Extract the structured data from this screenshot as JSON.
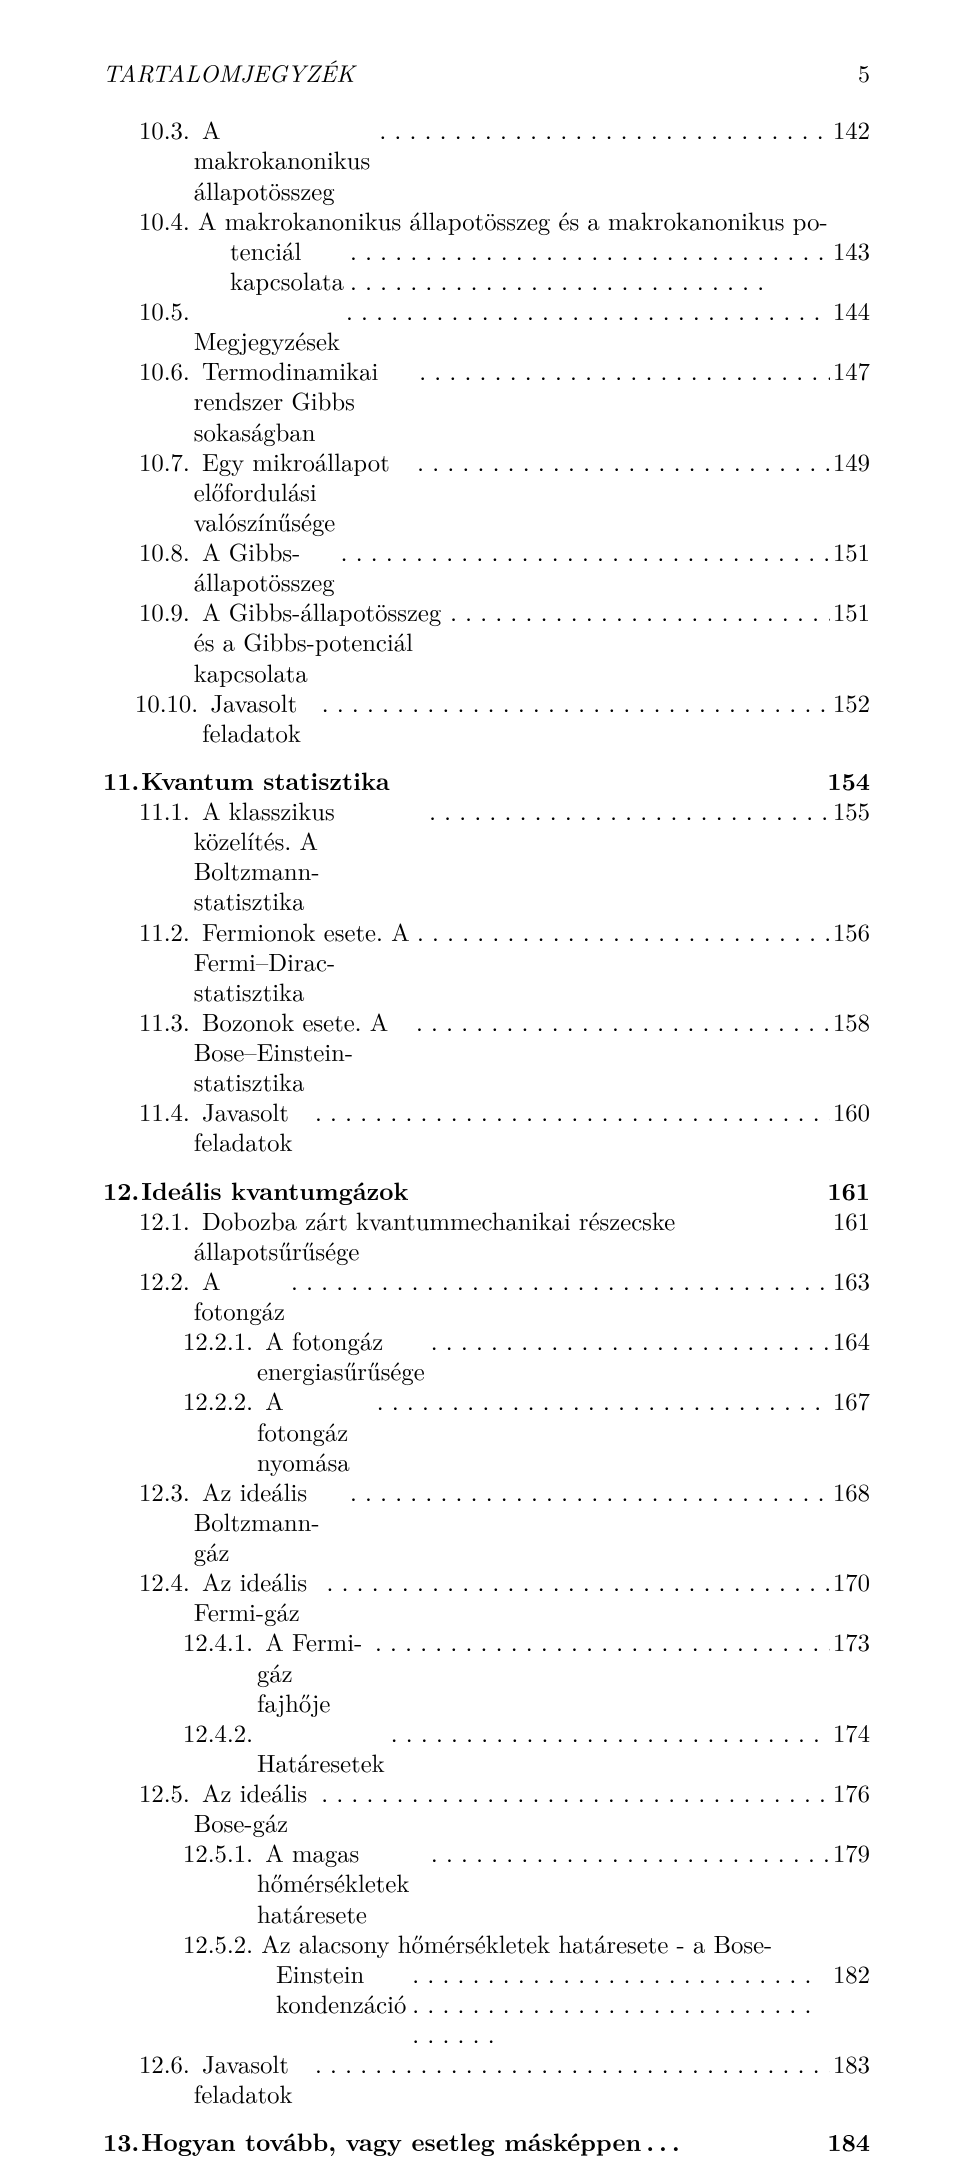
{
  "header": {
    "title": "TARTALOMJEGYZÉK",
    "page": "5"
  },
  "entries": [
    {
      "type": "sub",
      "indent": 1,
      "num": "10.3.",
      "text": "A makrokanonikus állapotösszeg",
      "page": "142"
    },
    {
      "type": "wrap",
      "indent": 1,
      "num": "10.4.",
      "text1": "A makrokanonikus állapotösszeg és a makrokanonikus po-",
      "text2": "tenciál kapcsolata",
      "page": "143"
    },
    {
      "type": "sub",
      "indent": 1,
      "num": "10.5.",
      "text": "Megjegyzések",
      "page": "144"
    },
    {
      "type": "sub",
      "indent": 1,
      "num": "10.6.",
      "text": "Termodinamikai rendszer Gibbs sokaságban",
      "page": "147"
    },
    {
      "type": "sub",
      "indent": 1,
      "num": "10.7.",
      "text": "Egy mikroállapot előfordulási valószínűsége",
      "page": "149"
    },
    {
      "type": "sub",
      "indent": 1,
      "num": "10.8.",
      "text": "A Gibbs-állapotösszeg",
      "page": "151"
    },
    {
      "type": "sub",
      "indent": 1,
      "num": "10.9.",
      "text": "A Gibbs-állapotösszeg és a Gibbs-potenciál kapcsolata",
      "page": "151"
    },
    {
      "type": "sub",
      "indent": 1,
      "num": "10.10.",
      "text": "Javasolt feladatok",
      "page": "152",
      "pad": "-4"
    },
    {
      "type": "chapter",
      "num": "11.",
      "text": "Kvantum statisztika",
      "page": "154"
    },
    {
      "type": "sub",
      "indent": 1,
      "num": "11.1.",
      "text": "A klasszikus közelítés. A Boltzmann-statisztika",
      "page": "155"
    },
    {
      "type": "sub",
      "indent": 1,
      "num": "11.2.",
      "text": "Fermionok esete. A Fermi–Dirac-statisztika",
      "page": "156"
    },
    {
      "type": "sub",
      "indent": 1,
      "num": "11.3.",
      "text": "Bozonok esete. A Bose–Einstein-statisztika",
      "page": "158"
    },
    {
      "type": "sub",
      "indent": 1,
      "num": "11.4.",
      "text": "Javasolt feladatok",
      "page": "160"
    },
    {
      "type": "chapter",
      "num": "12.",
      "text": "Ideális kvantumgázok",
      "page": "161"
    },
    {
      "type": "sub",
      "indent": 1,
      "num": "12.1.",
      "text": "Dobozba zárt kvantummechanikai részecske állapotsűrűsége",
      "page": "161",
      "noleader": true
    },
    {
      "type": "sub",
      "indent": 1,
      "num": "12.2.",
      "text": "A fotongáz",
      "page": "163"
    },
    {
      "type": "sub",
      "indent": 2,
      "num": "12.2.1.",
      "text": "A fotongáz energiasűrűsége",
      "page": "164"
    },
    {
      "type": "sub",
      "indent": 2,
      "num": "12.2.2.",
      "text": "A fotongáz nyomása",
      "page": "167"
    },
    {
      "type": "sub",
      "indent": 1,
      "num": "12.3.",
      "text": "Az ideális Boltzmann-gáz",
      "page": "168"
    },
    {
      "type": "sub",
      "indent": 1,
      "num": "12.4.",
      "text": "Az ideális Fermi-gáz",
      "page": "170"
    },
    {
      "type": "sub",
      "indent": 2,
      "num": "12.4.1.",
      "text": "A Fermi-gáz fajhője",
      "page": "173"
    },
    {
      "type": "sub",
      "indent": 2,
      "num": "12.4.2.",
      "text": "Határesetek",
      "page": "174"
    },
    {
      "type": "sub",
      "indent": 1,
      "num": "12.5.",
      "text": "Az ideális Bose-gáz",
      "page": "176"
    },
    {
      "type": "sub",
      "indent": 2,
      "num": "12.5.1.",
      "text": "A magas hőmérsékletek határesete",
      "page": "179"
    },
    {
      "type": "wrap2",
      "indent": 2,
      "num": "12.5.2.",
      "text1": "Az  alacsony  hőmérsékletek  határesete  -  a  Bose-",
      "text2": "Einstein kondenzáció",
      "page": "182"
    },
    {
      "type": "sub",
      "indent": 1,
      "num": "12.6.",
      "text": "Javasolt feladatok",
      "page": "183"
    },
    {
      "type": "chapter",
      "num": "13.",
      "text": "Hogyan tovább, vagy esetleg másképpen . . .",
      "page": "184"
    }
  ]
}
